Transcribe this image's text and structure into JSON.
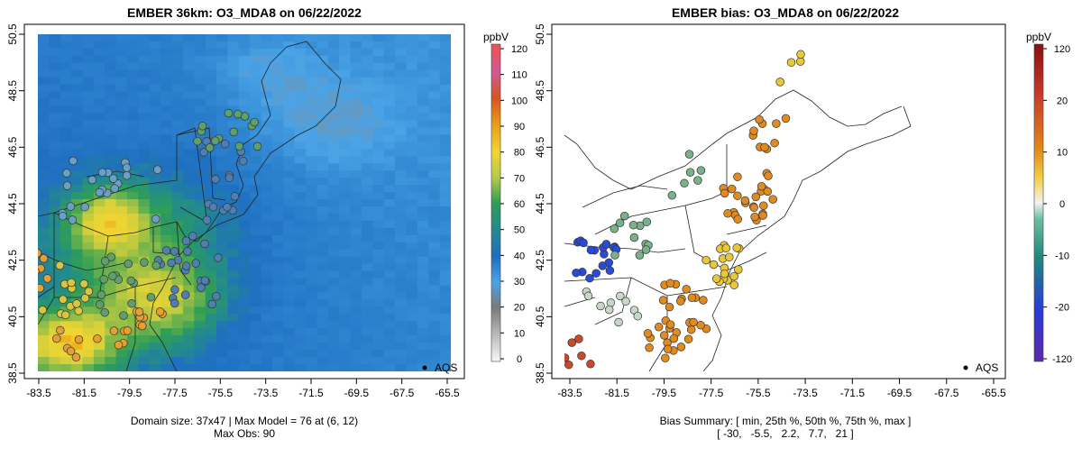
{
  "chart_data": [
    {
      "type": "heatmap",
      "title": "EMBER 36km: O3_MDA8 on 06/22/2022",
      "x_ticks": [
        "-83.5",
        "-81.5",
        "-79.5",
        "-77.5",
        "-75.5",
        "-73.5",
        "-71.5",
        "-69.5",
        "-67.5",
        "-65.5"
      ],
      "y_ticks": [
        "38.5",
        "40.5",
        "42.5",
        "44.5",
        "46.5",
        "48.5",
        "50.5"
      ],
      "xlim": [
        -84.4,
        -65.0
      ],
      "ylim": [
        38.5,
        50.5
      ],
      "colorbar": {
        "unit": "ppbV",
        "ticks": [
          "0",
          "10",
          "20",
          "30",
          "40",
          "50",
          "60",
          "70",
          "80",
          "90",
          "100",
          "110",
          "120"
        ],
        "range": [
          0,
          120
        ],
        "colors": [
          "#f7f7f7",
          "#9a9a9a",
          "#3d9be0",
          "#1f6fc0",
          "#238b8b",
          "#2f9e55",
          "#b6c94a",
          "#f2d630",
          "#e89a1a",
          "#d9541e",
          "#d05a95",
          "#d62a2a",
          "#f05050"
        ]
      },
      "legend": "AQS",
      "legend_position": "bottom-right",
      "footer_line1": "Domain size: 37x47 | Max Model = 76 at (6, 12)",
      "footer_line2": "Max Obs: 90",
      "domain_size": "37x47",
      "max_model": 76,
      "max_model_at": "(6, 12)",
      "max_obs": 90
    },
    {
      "type": "scatter",
      "title": "EMBER bias: O3_MDA8 on 06/22/2022",
      "x_ticks": [
        "-83.5",
        "-81.5",
        "-79.5",
        "-77.5",
        "-75.5",
        "-73.5",
        "-71.5",
        "-69.5",
        "-67.5",
        "-65.5"
      ],
      "y_ticks": [
        "38.5",
        "40.5",
        "42.5",
        "44.5",
        "46.5",
        "48.5",
        "50.5"
      ],
      "xlim": [
        -84.4,
        -65.0
      ],
      "ylim": [
        38.5,
        50.5
      ],
      "colorbar": {
        "unit": "ppbV",
        "ticks": [
          "120",
          "20",
          "10",
          "0",
          "-10",
          "-20",
          "-120"
        ],
        "colors": [
          "#8a1010",
          "#c83a2a",
          "#e0871a",
          "#f2cf40",
          "#f2f2f2",
          "#4cb58a",
          "#1f8a7a",
          "#1a5ed8",
          "#5a2aa8"
        ]
      },
      "legend": "AQS",
      "legend_position": "bottom-right",
      "footer_line1": "Bias Summary: [ min, 25th %, 50th %, 75th %, max ]",
      "footer_line2": "[ -30,   -5.5,   2.2,   7.7,   21 ]",
      "bias_summary": {
        "min": -30,
        "p25": -5.5,
        "p50": 2.2,
        "p75": 7.7,
        "max": 21
      }
    }
  ]
}
